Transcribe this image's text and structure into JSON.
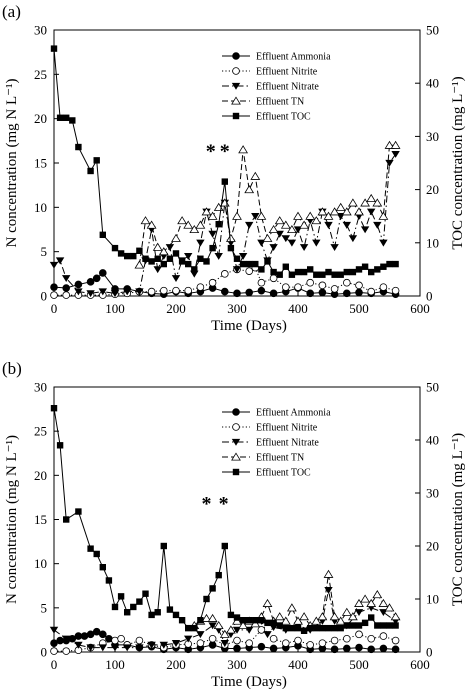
{
  "chart_data": [
    {
      "type": "line",
      "panel_label": "(a)",
      "xlabel": "Time (Days)",
      "ylabel_left": "N concentration (mg N L⁻¹)",
      "ylabel_right": "TOC concentration (mg L⁻¹)",
      "xlim": [
        0,
        600
      ],
      "ylim_left": [
        0,
        30
      ],
      "ylim_right": [
        0,
        50
      ],
      "xticks": [
        "0",
        "100",
        "200",
        "300",
        "400",
        "500",
        "600"
      ],
      "yticks_left": [
        "0",
        "5",
        "10",
        "15",
        "20",
        "25",
        "30"
      ],
      "yticks_right": [
        "0",
        "10",
        "20",
        "30",
        "40",
        "50"
      ],
      "annotation": "* *",
      "annotation_x": [
        257,
        280
      ],
      "annotation_y": 16.5,
      "legend_position": "top-right",
      "series": [
        {
          "name": "Effluent Ammonia",
          "axis": "left",
          "marker": "filled-circle",
          "dash": "solid",
          "x": [
            0,
            20,
            40,
            60,
            70,
            80,
            100,
            120,
            140,
            160,
            180,
            200,
            220,
            240,
            260,
            280,
            300,
            320,
            340,
            360,
            380,
            400,
            420,
            440,
            460,
            480,
            500,
            520,
            540,
            560
          ],
          "y": [
            1.0,
            0.9,
            1.3,
            1.6,
            2.0,
            2.6,
            0.8,
            0.8,
            0.5,
            0.3,
            0.2,
            0.5,
            0.3,
            0.5,
            0.9,
            0.5,
            0.3,
            0.4,
            0.6,
            0.3,
            0.5,
            0.9,
            0.3,
            0.4,
            0.2,
            0.3,
            0.4,
            0.3,
            0.5,
            0.2
          ]
        },
        {
          "name": "Effluent Nitrite",
          "axis": "left",
          "marker": "open-circle",
          "dash": "dotted",
          "x": [
            0,
            20,
            40,
            60,
            80,
            100,
            120,
            140,
            160,
            180,
            200,
            220,
            240,
            260,
            280,
            300,
            320,
            330,
            340,
            360,
            380,
            400,
            420,
            440,
            460,
            480,
            500,
            520,
            540,
            560
          ],
          "y": [
            0.1,
            0.1,
            0.1,
            0.1,
            0.1,
            0.2,
            0.3,
            0.5,
            0.5,
            0.6,
            0.6,
            0.6,
            1.0,
            1.5,
            2.5,
            3.0,
            2.8,
            3.2,
            1.5,
            2.0,
            1.0,
            1.0,
            1.5,
            1.2,
            0.8,
            1.5,
            1.2,
            0.5,
            1.0,
            0.6
          ]
        },
        {
          "name": "Effluent Nitrate",
          "axis": "left",
          "marker": "filled-triangle-down",
          "dash": "dash-dot",
          "x": [
            0,
            10,
            20,
            40,
            60,
            80,
            100,
            120,
            140,
            150,
            160,
            170,
            180,
            190,
            200,
            210,
            220,
            230,
            240,
            250,
            260,
            270,
            280,
            290,
            300,
            310,
            320,
            330,
            340,
            350,
            360,
            370,
            380,
            390,
            400,
            410,
            420,
            430,
            440,
            450,
            460,
            470,
            480,
            490,
            500,
            510,
            520,
            530,
            540,
            550,
            560
          ],
          "y": [
            3.5,
            4.0,
            2.0,
            0.5,
            0.3,
            0.5,
            0.3,
            0.5,
            0.5,
            4.0,
            7.5,
            3.0,
            4.5,
            5.5,
            2.0,
            4.0,
            4.5,
            2.5,
            6.0,
            9.5,
            7.0,
            4.5,
            10.5,
            6.0,
            3.0,
            4.5,
            8.0,
            9.0,
            6.0,
            4.0,
            5.5,
            7.0,
            6.5,
            6.0,
            7.5,
            5.5,
            8.5,
            6.0,
            9.5,
            8.0,
            5.5,
            9.0,
            8.0,
            6.5,
            9.0,
            7.5,
            9.5,
            8.0,
            6.0,
            15.0,
            16.0
          ]
        },
        {
          "name": "Effluent TN",
          "axis": "left",
          "marker": "open-triangle-up",
          "dash": "dashed",
          "x": [
            140,
            150,
            160,
            170,
            180,
            200,
            210,
            220,
            230,
            240,
            250,
            260,
            270,
            280,
            290,
            300,
            310,
            320,
            330,
            340,
            350,
            360,
            370,
            380,
            390,
            400,
            410,
            420,
            430,
            440,
            450,
            460,
            470,
            480,
            490,
            500,
            510,
            520,
            530,
            540,
            550,
            560
          ],
          "y": [
            3.5,
            8.5,
            8.0,
            5.5,
            5.0,
            6.5,
            8.5,
            8.0,
            7.5,
            8.0,
            9.5,
            9.0,
            10.0,
            10.5,
            6.5,
            9.0,
            16.5,
            12.0,
            13.5,
            9.0,
            6.5,
            7.5,
            8.5,
            8.0,
            7.5,
            9.0,
            8.0,
            9.0,
            8.5,
            9.5,
            9.0,
            9.5,
            10.0,
            9.5,
            10.5,
            9.5,
            10.5,
            11.0,
            10.5,
            9.0,
            17.0,
            17.0
          ]
        },
        {
          "name": "Effluent TOC",
          "axis": "right",
          "marker": "filled-square",
          "dash": "solid",
          "x": [
            0,
            10,
            20,
            30,
            40,
            60,
            70,
            80,
            100,
            110,
            120,
            130,
            140,
            150,
            160,
            170,
            180,
            190,
            200,
            210,
            220,
            230,
            240,
            250,
            260,
            270,
            280,
            290,
            300,
            310,
            320,
            330,
            340,
            350,
            360,
            370,
            380,
            390,
            400,
            410,
            420,
            430,
            440,
            450,
            460,
            470,
            480,
            490,
            500,
            510,
            520,
            530,
            540,
            550,
            560
          ],
          "y": [
            46.5,
            33.5,
            33.5,
            33.0,
            28.0,
            23.5,
            25.5,
            11.5,
            9.0,
            8.0,
            7.5,
            7.5,
            8.5,
            7.0,
            6.5,
            7.0,
            6.0,
            7.0,
            8.0,
            6.5,
            6.0,
            5.0,
            7.0,
            6.5,
            9.0,
            13.5,
            21.5,
            9.0,
            7.0,
            6.0,
            6.0,
            6.0,
            5.0,
            6.5,
            4.5,
            4.0,
            5.5,
            4.0,
            4.5,
            4.5,
            5.0,
            4.0,
            4.0,
            4.5,
            4.0,
            4.0,
            4.5,
            4.5,
            5.0,
            5.5,
            4.5,
            5.0,
            5.5,
            6.0,
            6.0
          ]
        }
      ]
    },
    {
      "type": "line",
      "panel_label": "(b)",
      "xlabel": "Time (Days)",
      "ylabel_left": "N concentration (mg N L⁻¹)",
      "ylabel_right": "TOC concentration (mg L⁻¹)",
      "xlim": [
        0,
        600
      ],
      "ylim_left": [
        0,
        30
      ],
      "ylim_right": [
        0,
        50
      ],
      "xticks": [
        "0",
        "100",
        "200",
        "300",
        "400",
        "500",
        "600"
      ],
      "yticks_left": [
        "0",
        "5",
        "10",
        "15",
        "20",
        "25",
        "30"
      ],
      "yticks_right": [
        "0",
        "10",
        "20",
        "30",
        "40",
        "50"
      ],
      "annotation": "* *",
      "annotation_x": [
        250,
        278
      ],
      "annotation_y": 17.0,
      "legend_position": "top-right",
      "series": [
        {
          "name": "Effluent Ammonia",
          "axis": "left",
          "marker": "filled-circle",
          "dash": "solid",
          "x": [
            0,
            10,
            20,
            30,
            40,
            50,
            60,
            70,
            80,
            90,
            100,
            120,
            140,
            160,
            180,
            200,
            220,
            240,
            260,
            280,
            300,
            320,
            340,
            360,
            380,
            400,
            420,
            440,
            460,
            480,
            500,
            520,
            540,
            560
          ],
          "y": [
            1.0,
            1.3,
            1.3,
            1.5,
            1.8,
            1.8,
            2.0,
            2.3,
            2.0,
            1.5,
            0.8,
            0.8,
            0.5,
            0.6,
            0.3,
            0.5,
            0.3,
            0.5,
            0.8,
            0.4,
            0.4,
            0.5,
            0.6,
            0.4,
            0.5,
            0.7,
            0.3,
            0.4,
            0.3,
            0.4,
            0.5,
            0.3,
            0.4,
            0.3
          ]
        },
        {
          "name": "Effluent Nitrite",
          "axis": "left",
          "marker": "open-circle",
          "dash": "dotted",
          "x": [
            0,
            20,
            40,
            60,
            80,
            100,
            110,
            120,
            140,
            160,
            180,
            200,
            220,
            240,
            260,
            280,
            300,
            320,
            340,
            360,
            380,
            400,
            420,
            440,
            460,
            480,
            500,
            520,
            540,
            560
          ],
          "y": [
            0.1,
            0.1,
            0.2,
            0.5,
            1.0,
            1.3,
            1.5,
            0.8,
            1.3,
            0.8,
            0.5,
            0.8,
            0.9,
            1.0,
            1.5,
            0.8,
            1.3,
            1.0,
            2.5,
            1.5,
            1.0,
            1.3,
            0.8,
            1.0,
            1.3,
            1.5,
            2.0,
            1.5,
            1.8,
            1.3
          ]
        },
        {
          "name": "Effluent Nitrate",
          "axis": "left",
          "marker": "filled-triangle-down",
          "dash": "dash-dot",
          "x": [
            0,
            20,
            40,
            60,
            80,
            100,
            120,
            140,
            160,
            180,
            200,
            220,
            240,
            260,
            270,
            280,
            290,
            300,
            320,
            340,
            350,
            360,
            380,
            400,
            420,
            440,
            450,
            460,
            480,
            500,
            520,
            540,
            560
          ],
          "y": [
            2.5,
            1.5,
            0.8,
            0.5,
            0.5,
            0.5,
            0.5,
            0.5,
            0.8,
            0.8,
            1.0,
            1.5,
            2.0,
            3.0,
            2.5,
            1.0,
            2.0,
            2.5,
            2.5,
            3.5,
            2.0,
            2.8,
            2.5,
            3.0,
            2.5,
            3.5,
            7.0,
            3.5,
            3.0,
            4.5,
            5.0,
            4.5,
            3.5
          ]
        },
        {
          "name": "Effluent TN",
          "axis": "left",
          "marker": "open-triangle-up",
          "dash": "dashed",
          "x": [
            230,
            240,
            250,
            260,
            270,
            280,
            290,
            300,
            310,
            320,
            330,
            340,
            350,
            360,
            370,
            380,
            390,
            400,
            410,
            420,
            430,
            440,
            450,
            460,
            470,
            480,
            490,
            500,
            510,
            520,
            530,
            540,
            550,
            560
          ],
          "y": [
            3.0,
            3.5,
            3.8,
            3.8,
            3.0,
            2.0,
            2.5,
            3.5,
            3.0,
            3.5,
            3.2,
            4.0,
            5.5,
            3.5,
            4.0,
            3.5,
            5.0,
            3.5,
            4.0,
            3.0,
            3.5,
            4.0,
            8.8,
            4.0,
            3.5,
            4.5,
            4.0,
            5.5,
            6.0,
            5.5,
            6.5,
            5.5,
            5.0,
            4.0
          ]
        },
        {
          "name": "Effluent TOC",
          "axis": "right",
          "marker": "filled-square",
          "dash": "solid",
          "x": [
            0,
            10,
            20,
            40,
            60,
            70,
            80,
            90,
            100,
            110,
            120,
            130,
            140,
            150,
            160,
            170,
            180,
            190,
            200,
            210,
            220,
            230,
            240,
            250,
            260,
            270,
            280,
            290,
            300,
            310,
            320,
            330,
            340,
            350,
            360,
            370,
            380,
            390,
            400,
            410,
            420,
            430,
            440,
            450,
            460,
            470,
            480,
            490,
            500,
            510,
            520,
            530,
            540,
            550,
            560
          ],
          "y": [
            46.0,
            39.0,
            25.0,
            26.5,
            19.5,
            18.5,
            16.0,
            13.5,
            8.5,
            10.5,
            7.5,
            8.5,
            9.5,
            11.0,
            7.0,
            7.5,
            20.0,
            8.0,
            7.0,
            6.0,
            4.5,
            4.5,
            6.0,
            10.0,
            12.0,
            14.5,
            20.0,
            7.0,
            6.5,
            6.0,
            6.0,
            6.0,
            6.0,
            5.5,
            5.5,
            5.0,
            4.5,
            4.5,
            4.5,
            4.0,
            4.5,
            4.5,
            4.5,
            4.5,
            4.5,
            4.5,
            5.0,
            5.0,
            5.0,
            5.5,
            6.5,
            5.0,
            5.0,
            5.0,
            5.0
          ]
        }
      ]
    }
  ]
}
